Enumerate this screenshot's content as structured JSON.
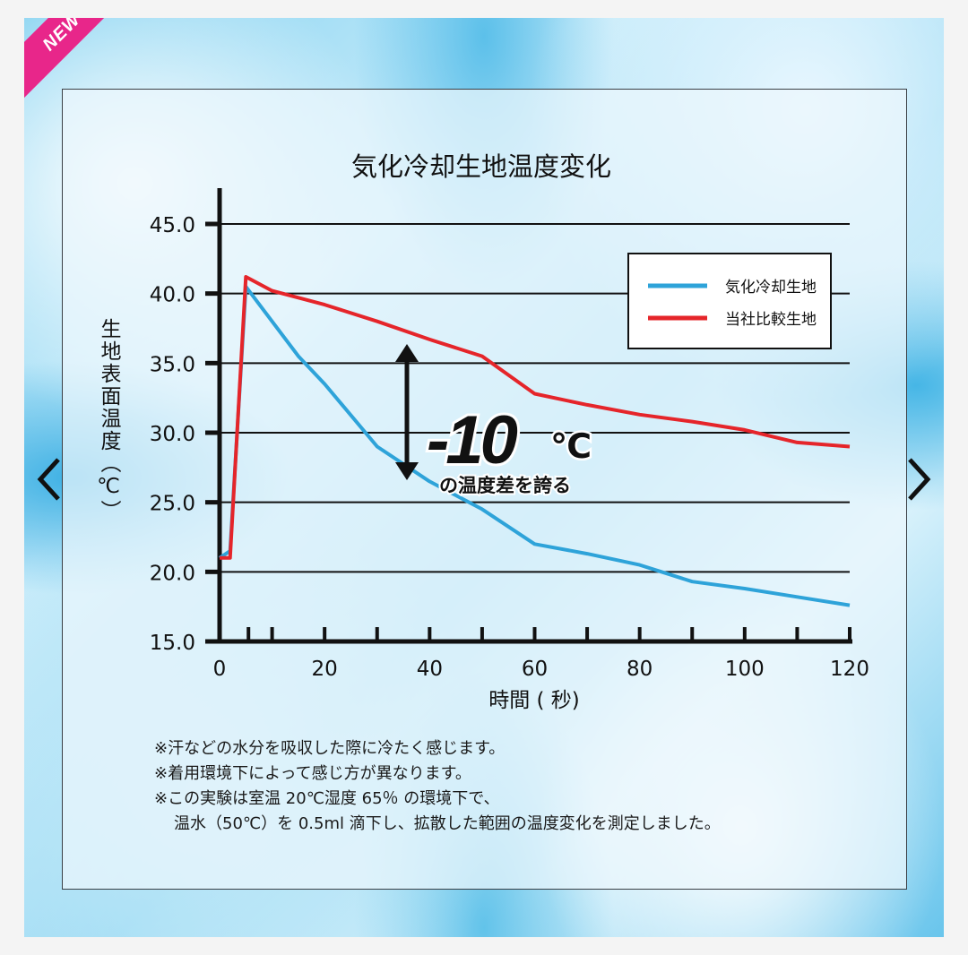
{
  "badge": "NEW",
  "notes": [
    "※汗などの水分を吸収した際に冷たく感じます。",
    "※着用環境下によって感じ方が異なります。",
    "※この実験は室温 20℃湿度 65％ の環境下で、",
    "温水（50℃）を 0.5ml 滴下し、拡散した範囲の温度変化を測定しました。"
  ],
  "annotation": {
    "value": "-10",
    "unit": "℃",
    "caption": "の温度差を誇る"
  },
  "colors": {
    "blue_series": "#2ea3d9",
    "red_series": "#e5252a",
    "axis": "#111111",
    "grid": "#111111"
  },
  "chart_data": {
    "type": "line",
    "title": "気化冷却生地温度変化",
    "xlabel": "時間 ( 秒)",
    "ylabel": "生地表面温度（℃）",
    "xlim": [
      0,
      120
    ],
    "ylim": [
      15,
      45
    ],
    "xticks": [
      "0",
      "20",
      "40",
      "60",
      "80",
      "100",
      "120"
    ],
    "yticks": [
      "15.0",
      "20.0",
      "25.0",
      "30.0",
      "35.0",
      "40.0",
      "45.0"
    ],
    "grid": "horizontal",
    "legend_position": "top-right",
    "series": [
      {
        "name": "気化冷却生地",
        "color": "#2ea3d9",
        "points": [
          [
            0,
            21.0
          ],
          [
            2,
            21.5
          ],
          [
            5,
            40.5
          ],
          [
            15,
            35.5
          ],
          [
            20,
            33.5
          ],
          [
            30,
            29.0
          ],
          [
            40,
            26.5
          ],
          [
            50,
            24.5
          ],
          [
            60,
            22.0
          ],
          [
            70,
            21.3
          ],
          [
            80,
            20.5
          ],
          [
            90,
            19.3
          ],
          [
            100,
            18.8
          ],
          [
            110,
            18.2
          ],
          [
            120,
            17.6
          ]
        ]
      },
      {
        "name": "当社比較生地",
        "color": "#e5252a",
        "points": [
          [
            0,
            21.0
          ],
          [
            2,
            21.0
          ],
          [
            5,
            41.2
          ],
          [
            10,
            40.2
          ],
          [
            20,
            39.2
          ],
          [
            30,
            38.0
          ],
          [
            40,
            36.7
          ],
          [
            50,
            35.5
          ],
          [
            60,
            32.8
          ],
          [
            70,
            32.0
          ],
          [
            80,
            31.3
          ],
          [
            90,
            30.8
          ],
          [
            100,
            30.2
          ],
          [
            110,
            29.3
          ],
          [
            120,
            29.0
          ]
        ]
      }
    ]
  }
}
